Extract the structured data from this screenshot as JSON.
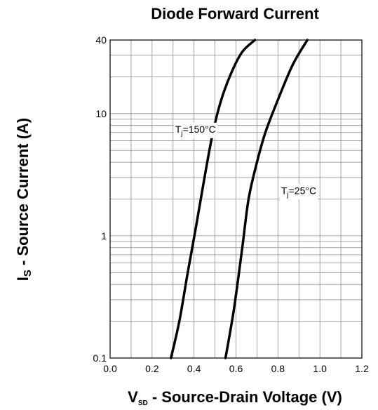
{
  "chart_data": {
    "type": "line",
    "title": "Diode Forward Current",
    "xlabel_main": "V",
    "xlabel_sub": "SD",
    "xlabel_rest": " - Source-Drain Voltage (V)",
    "ylabel_main": "I",
    "ylabel_sub": "S",
    "ylabel_rest": " - Source Current (A)",
    "xlim": [
      0.0,
      1.2
    ],
    "ylim": [
      0.1,
      40
    ],
    "yscale": "log",
    "x_tick_labels": [
      "0.0",
      "0.2",
      "0.4",
      "0.6",
      "0.8",
      "1.0",
      "1.2"
    ],
    "y_tick_labels": [
      {
        "value": 0.1,
        "label": "0.1"
      },
      {
        "value": 1,
        "label": "1"
      },
      {
        "value": 10,
        "label": "10"
      },
      {
        "value": 40,
        "label": "40"
      }
    ],
    "grid": true,
    "series": [
      {
        "label_main": "T",
        "label_sub": "j",
        "label_rest": "=150°C",
        "label_at": {
          "x": 0.31,
          "y": 7.0
        },
        "points": [
          [
            0.29,
            0.1
          ],
          [
            0.33,
            0.2
          ],
          [
            0.37,
            0.5
          ],
          [
            0.41,
            1.2
          ],
          [
            0.45,
            3.0
          ],
          [
            0.49,
            7.0
          ],
          [
            0.53,
            13.0
          ],
          [
            0.58,
            22.0
          ],
          [
            0.63,
            32.0
          ],
          [
            0.69,
            40.0
          ]
        ]
      },
      {
        "label_main": "T",
        "label_sub": "j",
        "label_rest": "=25°C",
        "label_at": {
          "x": 0.815,
          "y": 2.2
        },
        "points": [
          [
            0.55,
            0.1
          ],
          [
            0.59,
            0.25
          ],
          [
            0.63,
            0.8
          ],
          [
            0.66,
            2.0
          ],
          [
            0.7,
            4.0
          ],
          [
            0.74,
            7.0
          ],
          [
            0.8,
            13.0
          ],
          [
            0.87,
            25.0
          ],
          [
            0.94,
            40.0
          ]
        ]
      }
    ]
  }
}
